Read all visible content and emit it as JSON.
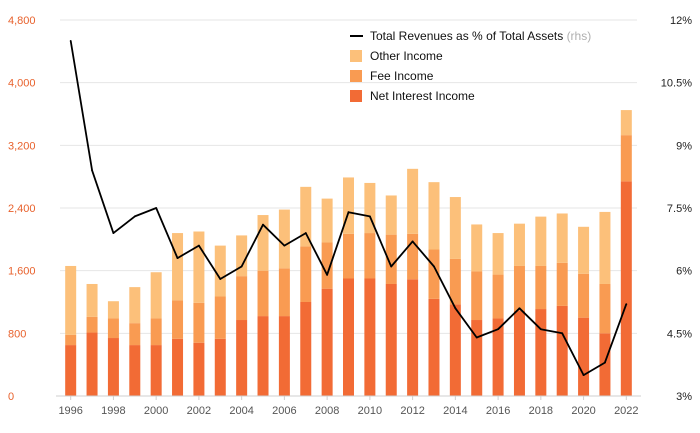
{
  "chart_data": {
    "type": "bar",
    "stacked": true,
    "categories": [
      "1996",
      "1997",
      "1998",
      "1999",
      "2000",
      "2001",
      "2002",
      "2003",
      "2004",
      "2005",
      "2006",
      "2007",
      "2008",
      "2009",
      "2010",
      "2011",
      "2012",
      "2013",
      "2014",
      "2015",
      "2016",
      "2017",
      "2018",
      "2019",
      "2020",
      "2021",
      "2022"
    ],
    "x_tick_labels": [
      "1996",
      "1998",
      "2000",
      "2002",
      "2004",
      "2006",
      "2008",
      "2010",
      "2012",
      "2014",
      "2016",
      "2018",
      "2020",
      "2022"
    ],
    "series": [
      {
        "name": "Net Interest Income",
        "color": "#f26b35",
        "values": [
          650,
          810,
          740,
          650,
          650,
          730,
          680,
          730,
          970,
          1020,
          1020,
          1200,
          1370,
          1500,
          1500,
          1430,
          1490,
          1240,
          1170,
          970,
          990,
          1090,
          1110,
          1150,
          1000,
          800,
          2740
        ]
      },
      {
        "name": "Fee Income",
        "color": "#f99b52",
        "values": [
          130,
          200,
          250,
          280,
          340,
          490,
          510,
          540,
          560,
          580,
          610,
          710,
          590,
          570,
          580,
          630,
          580,
          630,
          580,
          620,
          560,
          570,
          550,
          550,
          560,
          630,
          590
        ]
      },
      {
        "name": "Other Income",
        "color": "#fcc07a",
        "values": [
          880,
          420,
          220,
          460,
          590,
          860,
          910,
          650,
          520,
          710,
          750,
          760,
          560,
          720,
          640,
          500,
          830,
          860,
          790,
          600,
          530,
          540,
          630,
          630,
          600,
          920,
          320
        ]
      }
    ],
    "line_series": {
      "name": "Total Revenues as % of Total Assets",
      "name_note": "(rhs)",
      "color": "#000000",
      "axis": "right",
      "values": [
        11.5,
        8.4,
        6.9,
        7.3,
        7.5,
        6.3,
        6.6,
        5.8,
        6.1,
        7.1,
        6.6,
        6.9,
        5.9,
        7.4,
        7.3,
        6.1,
        6.7,
        6.1,
        5.1,
        4.4,
        4.6,
        5.1,
        4.6,
        4.5,
        3.5,
        3.8,
        5.2
      ]
    },
    "y_left": {
      "min": 0,
      "max": 4800,
      "ticks": [
        "0",
        "800",
        "1,600",
        "2,400",
        "3,200",
        "4,000",
        "4,800"
      ],
      "tick_values": [
        0,
        800,
        1600,
        2400,
        3200,
        4000,
        4800
      ]
    },
    "y_right": {
      "min": 3,
      "max": 12,
      "ticks": [
        "3%",
        "4.5%",
        "6%",
        "7.5%",
        "9%",
        "10.5%",
        "12%"
      ],
      "tick_values": [
        3,
        4.5,
        6,
        7.5,
        9,
        10.5,
        12
      ]
    },
    "grid": true,
    "legend_position": "top-right",
    "legend_order": [
      "Total Revenues as % of Total Assets",
      "Other Income",
      "Fee Income",
      "Net Interest Income"
    ],
    "title": "",
    "xlabel": "",
    "ylabel": ""
  }
}
